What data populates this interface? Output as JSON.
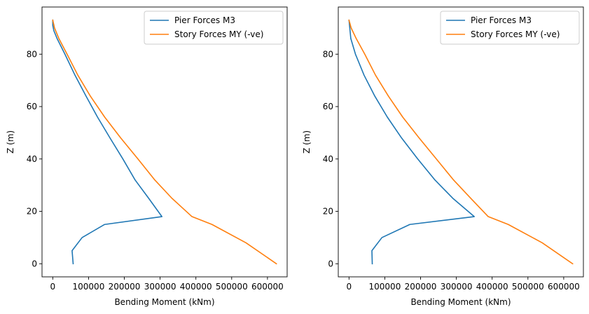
{
  "chart_data": [
    {
      "type": "line",
      "title": "",
      "xlabel": "Bending Moment (kNm)",
      "ylabel": "Z (m)",
      "xlim": [
        -30000,
        655000
      ],
      "ylim": [
        -5,
        98
      ],
      "xticks": [
        0,
        100000,
        200000,
        300000,
        400000,
        500000,
        600000
      ],
      "xtick_labels": [
        "0",
        "100000",
        "200000",
        "300000",
        "400000",
        "500000",
        "600000"
      ],
      "yticks": [
        0,
        20,
        40,
        60,
        80
      ],
      "ytick_labels": [
        "0",
        "20",
        "40",
        "60",
        "80"
      ],
      "grid": false,
      "legend": "top-right",
      "series": [
        {
          "name": "Pier Forces M3",
          "color": "#1f77b4",
          "x": [
            57000,
            54000,
            82000,
            145000,
            305000,
            268000,
            230000,
            196000,
            160000,
            125000,
            93000,
            62000,
            34000,
            12000,
            3000,
            0,
            0
          ],
          "y": [
            0,
            5,
            10,
            15,
            18,
            25,
            32,
            40,
            48,
            56,
            64,
            72,
            80,
            86,
            89,
            91,
            93
          ]
        },
        {
          "name": "Story Forces MY (-ve)",
          "color": "#ff7f0e",
          "x": [
            625000,
            540000,
            445000,
            389000,
            333000,
            285000,
            238000,
            190000,
            145000,
            105000,
            70000,
            40000,
            17000,
            5000,
            0
          ],
          "y": [
            0,
            8,
            15,
            18,
            25,
            32,
            40,
            48,
            56,
            64,
            72,
            80,
            86,
            90,
            93
          ]
        }
      ]
    },
    {
      "type": "line",
      "title": "",
      "xlabel": "Bending Moment (kNm)",
      "ylabel": "Z (m)",
      "xlim": [
        -30000,
        655000
      ],
      "ylim": [
        -5,
        98
      ],
      "xticks": [
        0,
        100000,
        200000,
        300000,
        400000,
        500000,
        600000
      ],
      "xtick_labels": [
        "0",
        "100000",
        "200000",
        "300000",
        "400000",
        "500000",
        "600000"
      ],
      "yticks": [
        0,
        20,
        40,
        60,
        80
      ],
      "ytick_labels": [
        "0",
        "20",
        "40",
        "60",
        "80"
      ],
      "grid": false,
      "legend": "top-right",
      "series": [
        {
          "name": "Pier Forces M3",
          "color": "#1f77b4",
          "x": [
            65000,
            64000,
            92000,
            170000,
            350000,
            290000,
            240000,
            192000,
            147000,
            107000,
            72000,
            42000,
            18000,
            5000,
            0
          ],
          "y": [
            0,
            5,
            10,
            15,
            18,
            25,
            32,
            40,
            48,
            56,
            64,
            72,
            80,
            86,
            93
          ]
        },
        {
          "name": "Story Forces MY (-ve)",
          "color": "#ff7f0e",
          "x": [
            625000,
            540000,
            445000,
            389000,
            340000,
            292000,
            244000,
            196000,
            150000,
            110000,
            74000,
            44000,
            20000,
            6000,
            0
          ],
          "y": [
            0,
            8,
            15,
            18,
            25,
            32,
            40,
            48,
            56,
            64,
            72,
            80,
            86,
            90,
            93
          ]
        }
      ]
    }
  ]
}
